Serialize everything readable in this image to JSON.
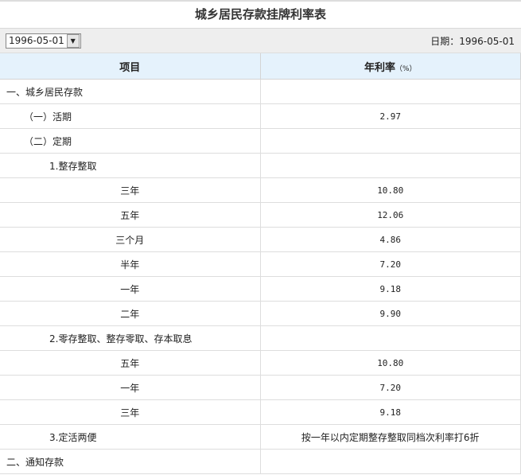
{
  "title": "城乡居民存款挂牌利率表",
  "toolbar": {
    "date_select": "1996-05-01",
    "date_label": "日期：",
    "date_value": "1996-05-01"
  },
  "header": {
    "item": "项目",
    "rate": "年利率",
    "unit": "（%）"
  },
  "rows": [
    {
      "label": "一、城乡居民存款",
      "rate": "",
      "level": 0
    },
    {
      "label": "（一）活期",
      "rate": "2.97",
      "level": 1
    },
    {
      "label": "（二）定期",
      "rate": "",
      "level": 1
    },
    {
      "label": "1.整存整取",
      "rate": "",
      "level": 2
    },
    {
      "label": "三年",
      "rate": "10.80",
      "level": 3
    },
    {
      "label": "五年",
      "rate": "12.06",
      "level": 3
    },
    {
      "label": "三个月",
      "rate": "4.86",
      "level": 3
    },
    {
      "label": "半年",
      "rate": "7.20",
      "level": 3
    },
    {
      "label": "一年",
      "rate": "9.18",
      "level": 3
    },
    {
      "label": "二年",
      "rate": "9.90",
      "level": 3
    },
    {
      "label": "2.零存整取、整存零取、存本取息",
      "rate": "",
      "level": 2
    },
    {
      "label": "五年",
      "rate": "10.80",
      "level": 3
    },
    {
      "label": "一年",
      "rate": "7.20",
      "level": 3
    },
    {
      "label": "三年",
      "rate": "9.18",
      "level": 3
    },
    {
      "label": "3.定活两便",
      "rate": "按一年以内定期整存整取同档次利率打6折",
      "level": 2
    },
    {
      "label": "二、通知存款",
      "rate": "",
      "level": 0
    }
  ]
}
